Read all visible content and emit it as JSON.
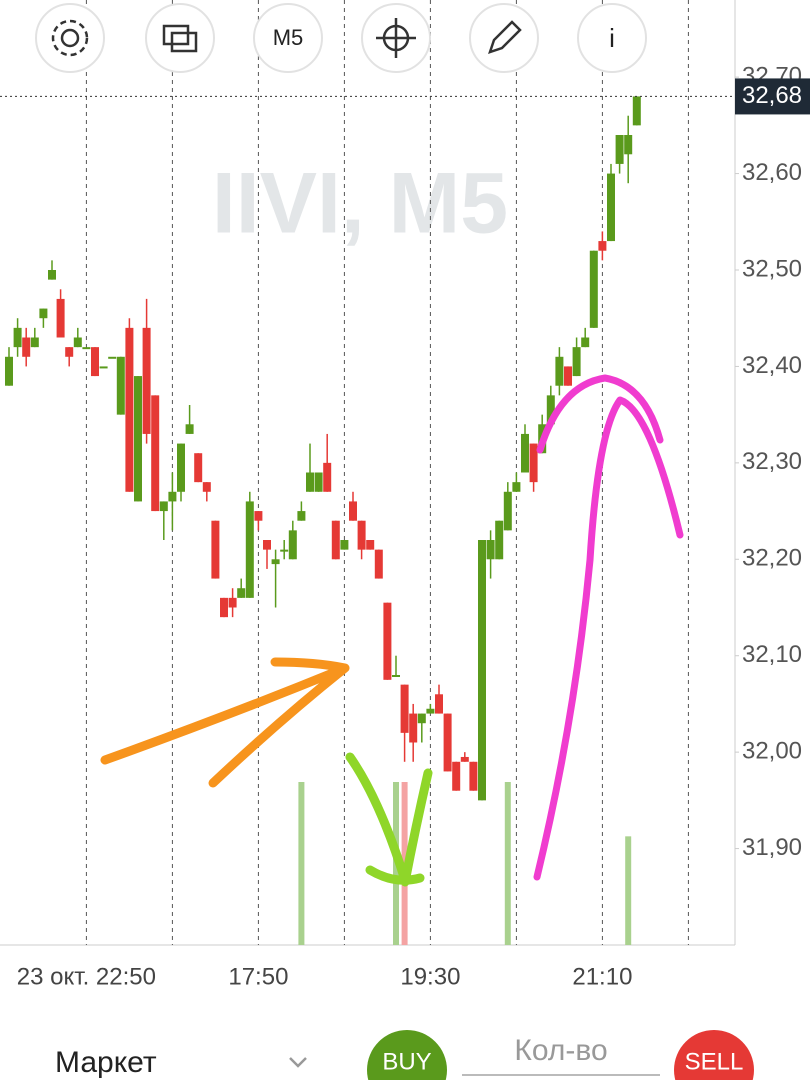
{
  "toolbar": {
    "period_button": "M5",
    "info_button": "i"
  },
  "chart_data": {
    "type": "candlestick",
    "watermark": "IIVI, M5",
    "categories": [
      null,
      null,
      null,
      null,
      null,
      null,
      null,
      null,
      null,
      "23 окт. 22:50",
      null,
      null,
      null,
      null,
      null,
      null,
      null,
      null,
      null,
      null,
      null,
      null,
      null,
      null,
      null,
      null,
      null,
      null,
      null,
      "17:50",
      null,
      null,
      null,
      null,
      null,
      null,
      null,
      null,
      null,
      null,
      null,
      null,
      null,
      null,
      null,
      null,
      null,
      null,
      null,
      "19:30",
      null,
      null,
      null,
      null,
      null,
      null,
      null,
      null,
      null,
      null,
      null,
      null,
      null,
      null,
      null,
      null,
      null,
      null,
      null,
      "21:10",
      null,
      null,
      null,
      null
    ],
    "open": [
      32.38,
      32.42,
      32.43,
      32.42,
      32.45,
      32.49,
      32.47,
      32.42,
      32.42,
      32.42,
      32.42,
      32.4,
      32.41,
      32.35,
      32.44,
      32.26,
      32.44,
      32.37,
      32.25,
      32.26,
      32.27,
      32.33,
      32.31,
      32.28,
      32.24,
      32.16,
      32.16,
      32.16,
      32.16,
      32.25,
      32.22,
      32.195,
      32.21,
      32.2,
      32.24,
      32.27,
      32.27,
      32.3,
      32.24,
      32.21,
      32.26,
      32.24,
      32.22,
      32.21,
      32.155,
      32.08,
      32.07,
      32.04,
      32.03,
      32.04,
      32.06,
      32.04,
      31.99,
      31.995,
      31.99,
      31.95,
      32.2,
      32.2,
      32.23,
      32.27,
      32.29,
      32.32,
      32.31,
      32.34,
      32.38,
      32.4,
      32.39,
      32.42,
      32.44,
      32.53,
      32.53,
      32.61,
      32.62,
      32.65
    ],
    "high": [
      32.42,
      32.45,
      32.44,
      32.44,
      32.46,
      32.51,
      32.48,
      32.42,
      32.44,
      32.42,
      32.42,
      32.4,
      32.41,
      32.41,
      32.45,
      32.39,
      32.47,
      32.37,
      32.26,
      32.29,
      32.32,
      32.36,
      32.31,
      32.28,
      32.24,
      32.16,
      32.17,
      32.18,
      32.27,
      32.25,
      32.22,
      32.21,
      32.22,
      32.24,
      32.26,
      32.32,
      32.29,
      32.33,
      32.24,
      32.22,
      32.27,
      32.24,
      32.22,
      32.21,
      32.155,
      32.1,
      32.07,
      32.05,
      32.04,
      32.05,
      32.07,
      32.04,
      31.99,
      32.0,
      31.99,
      32.22,
      32.23,
      32.24,
      32.28,
      32.29,
      32.34,
      32.32,
      32.35,
      32.38,
      32.42,
      32.4,
      32.43,
      32.44,
      32.52,
      32.54,
      32.61,
      32.64,
      32.66,
      32.68
    ],
    "low": [
      32.38,
      32.41,
      32.4,
      32.42,
      32.44,
      32.49,
      32.43,
      32.4,
      32.42,
      32.42,
      32.39,
      32.4,
      32.41,
      32.35,
      32.27,
      32.26,
      32.32,
      32.25,
      32.22,
      32.23,
      32.26,
      32.33,
      32.28,
      32.26,
      32.18,
      32.14,
      32.14,
      32.16,
      32.16,
      32.23,
      32.19,
      32.15,
      32.2,
      32.2,
      32.24,
      32.27,
      32.27,
      32.27,
      32.2,
      32.21,
      32.24,
      32.2,
      32.21,
      32.18,
      32.075,
      32.08,
      31.99,
      31.99,
      32.01,
      32.04,
      32.04,
      31.98,
      31.96,
      31.99,
      31.96,
      31.95,
      32.18,
      32.2,
      32.23,
      32.27,
      32.29,
      32.27,
      32.31,
      32.34,
      32.37,
      32.38,
      32.39,
      32.42,
      32.44,
      32.51,
      32.53,
      32.6,
      32.59,
      32.65
    ],
    "close": [
      32.41,
      32.44,
      32.41,
      32.43,
      32.46,
      32.5,
      32.43,
      32.41,
      32.43,
      32.42,
      32.39,
      32.4,
      32.41,
      32.41,
      32.27,
      32.39,
      32.33,
      32.25,
      32.26,
      32.27,
      32.32,
      32.34,
      32.28,
      32.27,
      32.18,
      32.14,
      32.15,
      32.17,
      32.26,
      32.24,
      32.21,
      32.2,
      32.21,
      32.23,
      32.25,
      32.29,
      32.29,
      32.27,
      32.2,
      32.22,
      32.24,
      32.21,
      32.21,
      32.18,
      32.075,
      32.08,
      32.02,
      32.01,
      32.04,
      32.045,
      32.04,
      31.98,
      31.96,
      31.99,
      31.96,
      32.22,
      32.22,
      32.24,
      32.27,
      32.28,
      32.33,
      32.28,
      32.34,
      32.37,
      32.41,
      32.38,
      32.42,
      32.43,
      32.52,
      32.52,
      32.6,
      32.64,
      32.64,
      32.68
    ],
    "volume": [
      0,
      0,
      0,
      0,
      0,
      0,
      0,
      0,
      0,
      0,
      0,
      0,
      0,
      0,
      0,
      0,
      0,
      0,
      0,
      0,
      0,
      0,
      0,
      0,
      0,
      0,
      0,
      0,
      0,
      0,
      0,
      0,
      0,
      0,
      3,
      0,
      0,
      0,
      0,
      0,
      0,
      0,
      0,
      0,
      0,
      3,
      3,
      0,
      0,
      0,
      0,
      0,
      0,
      0,
      0,
      0,
      0,
      0,
      3,
      0,
      0,
      0,
      0,
      0,
      0,
      0,
      0,
      0,
      0,
      0,
      0,
      0,
      2,
      0
    ],
    "up_color": "#5a9a1c",
    "down_color": "#e53935",
    "ylim": [
      31.8,
      32.78
    ],
    "yticks": [
      {
        "value": 31.9,
        "label": "31,90"
      },
      {
        "value": 32.0,
        "label": "32,00"
      },
      {
        "value": 32.1,
        "label": "32,10"
      },
      {
        "value": 32.2,
        "label": "32,20"
      },
      {
        "value": 32.3,
        "label": "32,30"
      },
      {
        "value": 32.4,
        "label": "32,40"
      },
      {
        "value": 32.5,
        "label": "32,50"
      },
      {
        "value": 32.6,
        "label": "32,60"
      },
      {
        "value": 32.7,
        "label": "32,70"
      }
    ],
    "last_price": {
      "value": 32.68,
      "label": "32,68"
    }
  },
  "order_panel": {
    "order_type": "Маркет",
    "buy": "BUY",
    "quantity_placeholder": "Кол-во",
    "sell": "SELL"
  }
}
